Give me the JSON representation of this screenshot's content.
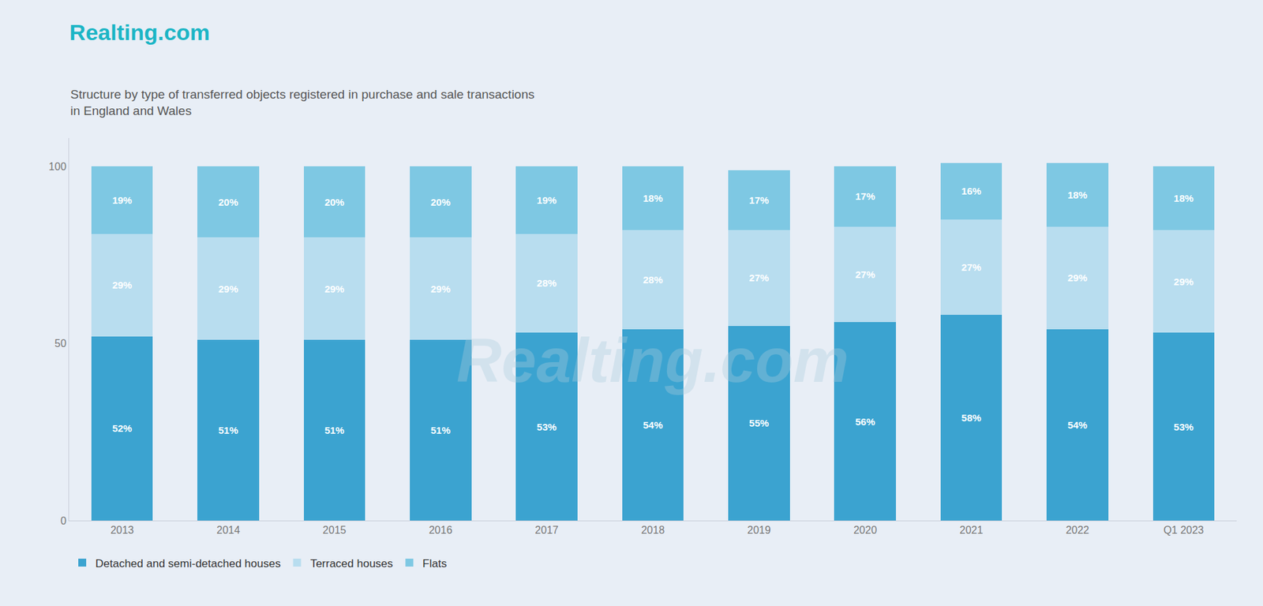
{
  "chart_data": {
    "type": "bar",
    "stacked": true,
    "title": "Realting.com",
    "subtitle": [
      "Structure by type of transferred objects registered in purchase and sale transactions",
      "in England and Wales"
    ],
    "annotations": [
      "Realting.com"
    ],
    "categories": [
      "2013",
      "2014",
      "2015",
      "2016",
      "2017",
      "2018",
      "2019",
      "2020",
      "2021",
      "2022",
      "Q1 2023"
    ],
    "series": [
      {
        "name": "Detached and semi-detached houses",
        "color": "#3BA3D0",
        "values": [
          52,
          51,
          51,
          51,
          53,
          54,
          55,
          56,
          58,
          54,
          53
        ],
        "value_labels": [
          "52%",
          "51%",
          "51%",
          "51%",
          "53%",
          "54%",
          "55%",
          "56%",
          "58%",
          "54%",
          "53%"
        ]
      },
      {
        "name": "Terraced houses",
        "color": "#B8DDEF",
        "values": [
          29,
          29,
          29,
          29,
          28,
          28,
          27,
          27,
          27,
          29,
          29
        ],
        "value_labels": [
          "29%",
          "29%",
          "29%",
          "29%",
          "28%",
          "28%",
          "27%",
          "27%",
          "27%",
          "29%",
          "29%"
        ]
      },
      {
        "name": "Flats",
        "color": "#7EC8E3",
        "values": [
          19,
          20,
          20,
          20,
          19,
          18,
          17,
          17,
          16,
          18,
          18
        ],
        "value_labels": [
          "19%",
          "20%",
          "20%",
          "20%",
          "19%",
          "18%",
          "17%",
          "17%",
          "16%",
          "18%",
          "18%"
        ]
      }
    ],
    "ylim": [
      0,
      108
    ],
    "yticks": [
      0,
      50,
      100
    ],
    "grid": false,
    "legend": "bottom left",
    "data_labels": true
  }
}
